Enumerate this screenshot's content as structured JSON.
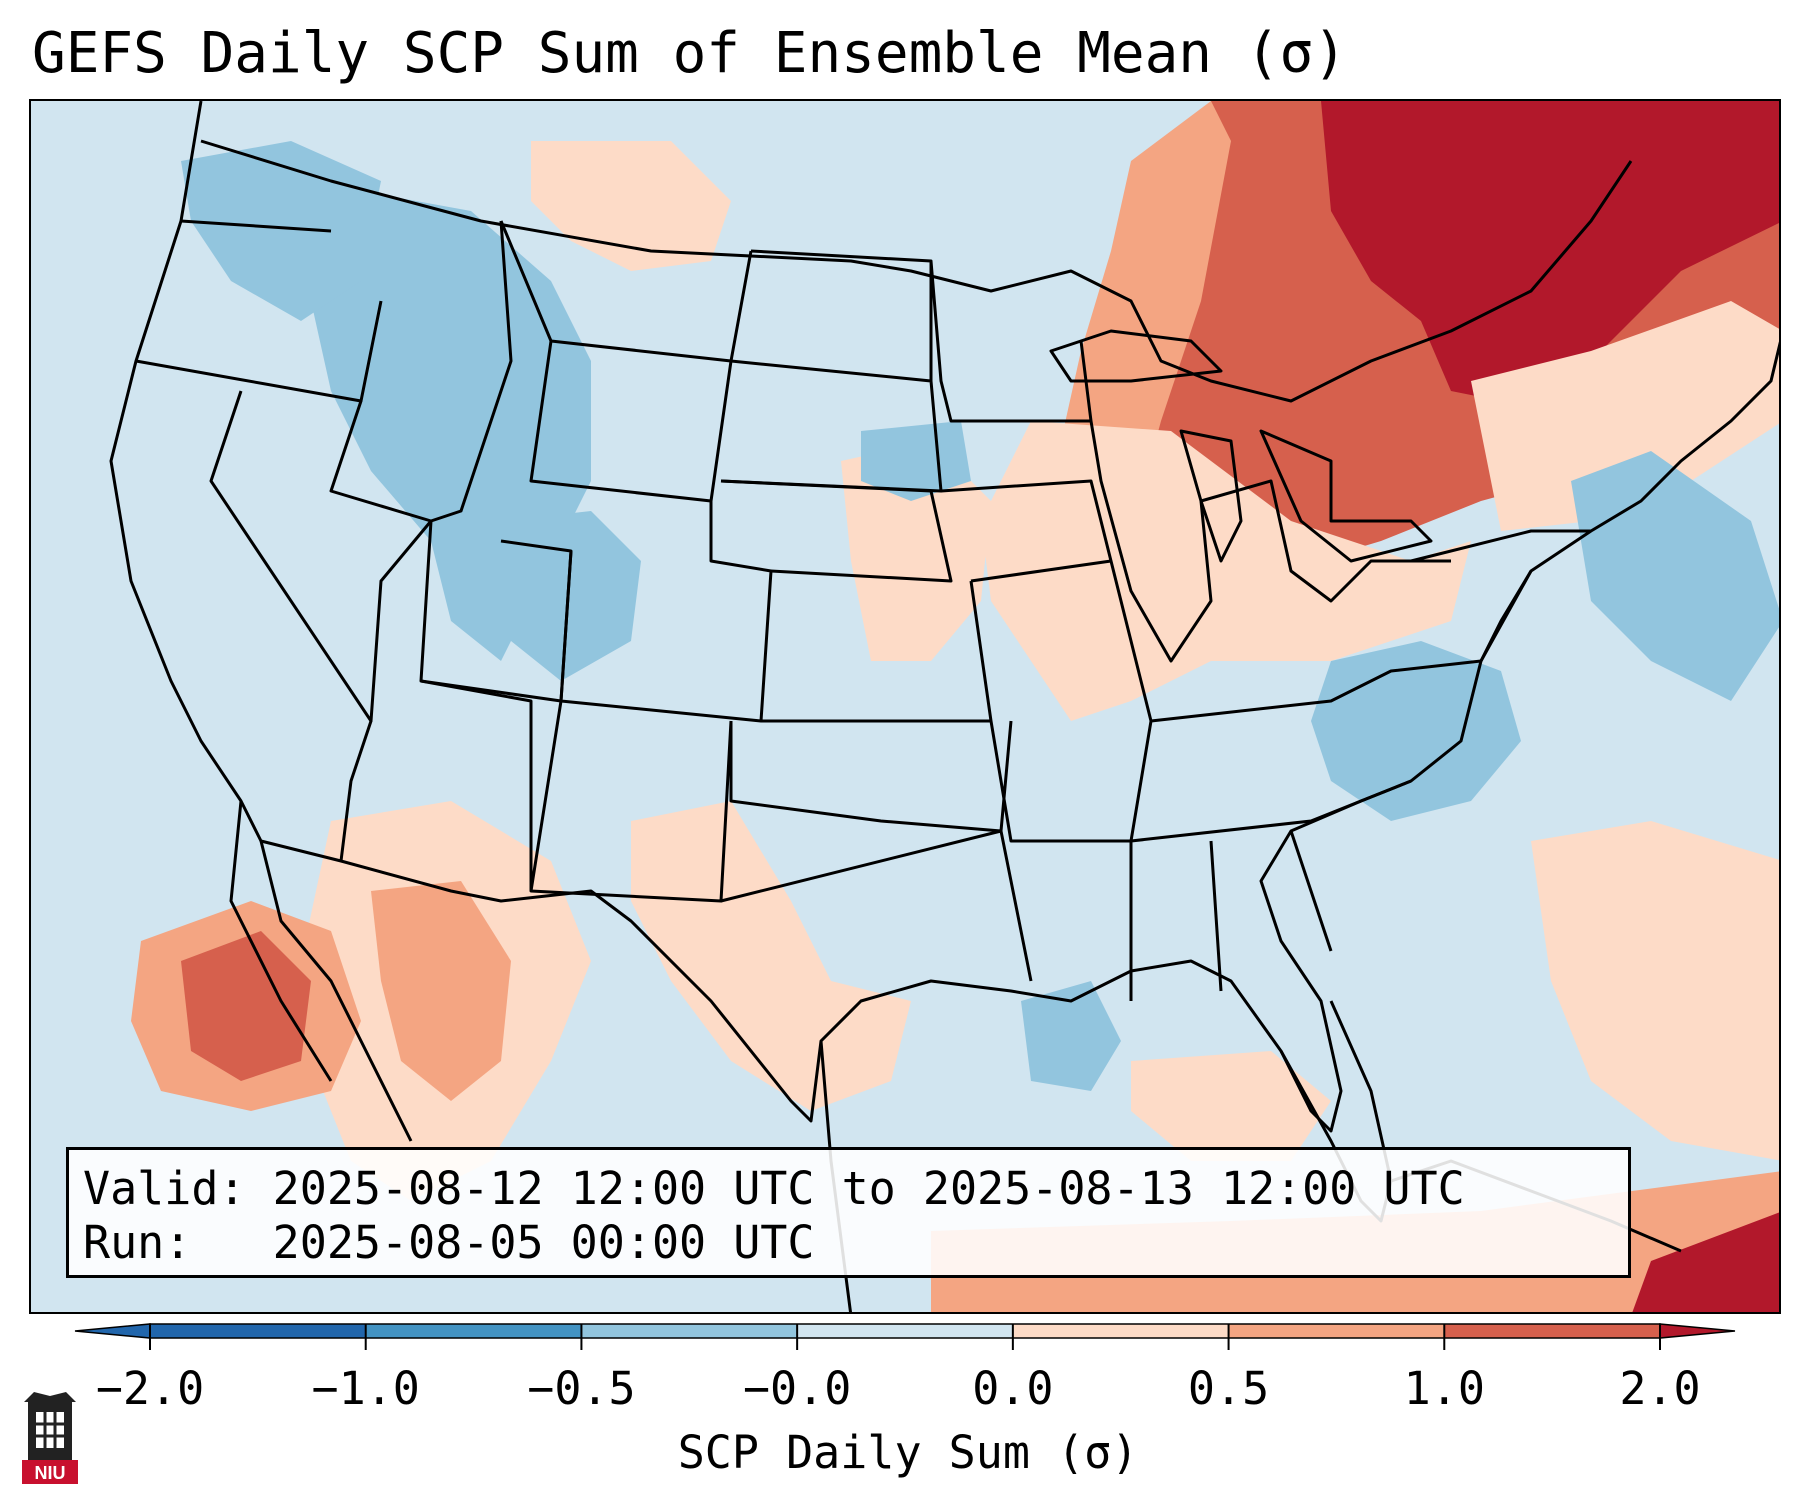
{
  "title": "GEFS Daily SCP Sum of Ensemble Mean (σ)",
  "info_box": {
    "valid_line": "Valid: 2025-08-12 12:00 UTC to 2025-08-13 12:00 UTC",
    "run_line": "Run:   2025-08-05 00:00 UTC"
  },
  "colorbar": {
    "label": "SCP Daily Sum (σ)",
    "ticks": [
      "−2.0",
      "−1.0",
      "−0.5",
      "−0.0",
      "0.0",
      "0.5",
      "1.0",
      "2.0"
    ],
    "colors": [
      "#2166ac",
      "#4393c3",
      "#92c5de",
      "#d1e5f0",
      "#fddbc7",
      "#f4a582",
      "#d6604d",
      "#b2182b"
    ],
    "extend": "both"
  },
  "map": {
    "region": "Contiguous United States",
    "background_color": "#d1e5f0",
    "outline_color": "#000000",
    "anomaly_regions": [
      {
        "name": "Northeast / Great Lakes",
        "level": 1.0
      },
      {
        "name": "Quebec / Maine",
        "level": 2.0
      },
      {
        "name": "Mid-Atlantic / Ohio Valley",
        "level": 0.5
      },
      {
        "name": "Northern Rockies",
        "level": -0.5
      },
      {
        "name": "Virginia / North Carolina",
        "level": -0.5
      },
      {
        "name": "Southwest / Mexico",
        "level": 0.5
      },
      {
        "name": "Baja California",
        "level": 1.0
      }
    ]
  },
  "logo": {
    "text": "NIU",
    "icon": "university-tower-icon"
  }
}
